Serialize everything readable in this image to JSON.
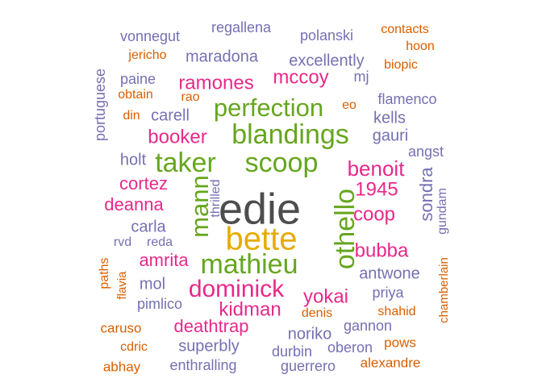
{
  "chart_data": {
    "type": "wordcloud",
    "title": "",
    "palette": {
      "grey": "#4d4d4d",
      "gold": "#e6ab02",
      "green": "#66a61e",
      "magenta": "#e7298a",
      "purple": "#7570b3",
      "orange": "#d95f02"
    },
    "words": [
      {
        "text": "edie",
        "color": "grey"
      },
      {
        "text": "bette",
        "color": "gold"
      },
      {
        "text": "blandings",
        "color": "green"
      },
      {
        "text": "scoop",
        "color": "green"
      },
      {
        "text": "taker",
        "color": "green"
      },
      {
        "text": "mathieu",
        "color": "green"
      },
      {
        "text": "othello",
        "color": "green"
      },
      {
        "text": "perfection",
        "color": "green"
      },
      {
        "text": "mann",
        "color": "green"
      },
      {
        "text": "dominick",
        "color": "magenta"
      },
      {
        "text": "yokai",
        "color": "magenta"
      },
      {
        "text": "kidman",
        "color": "magenta"
      },
      {
        "text": "benoit",
        "color": "magenta"
      },
      {
        "text": "1945",
        "color": "magenta"
      },
      {
        "text": "coop",
        "color": "magenta"
      },
      {
        "text": "bubba",
        "color": "magenta"
      },
      {
        "text": "mccoy",
        "color": "magenta"
      },
      {
        "text": "ramones",
        "color": "magenta"
      },
      {
        "text": "booker",
        "color": "magenta"
      },
      {
        "text": "cortez",
        "color": "magenta"
      },
      {
        "text": "deanna",
        "color": "magenta"
      },
      {
        "text": "amrita",
        "color": "magenta"
      },
      {
        "text": "deathtrap",
        "color": "magenta"
      },
      {
        "text": "sondra",
        "color": "purple"
      },
      {
        "text": "noriko",
        "color": "purple"
      },
      {
        "text": "superbly",
        "color": "purple"
      },
      {
        "text": "antwone",
        "color": "purple"
      },
      {
        "text": "excellently",
        "color": "purple"
      },
      {
        "text": "maradona",
        "color": "purple"
      },
      {
        "text": "carla",
        "color": "purple"
      },
      {
        "text": "carell",
        "color": "purple"
      },
      {
        "text": "kells",
        "color": "purple"
      },
      {
        "text": "gauri",
        "color": "purple"
      },
      {
        "text": "flamenco",
        "color": "purple"
      },
      {
        "text": "portuguese",
        "color": "purple"
      },
      {
        "text": "holt",
        "color": "purple"
      },
      {
        "text": "mol",
        "color": "purple"
      },
      {
        "text": "pimlico",
        "color": "purple"
      },
      {
        "text": "priya",
        "color": "purple"
      },
      {
        "text": "gannon",
        "color": "purple"
      },
      {
        "text": "durbin",
        "color": "purple"
      },
      {
        "text": "oberon",
        "color": "purple"
      },
      {
        "text": "guerrero",
        "color": "purple"
      },
      {
        "text": "enthralling",
        "color": "purple"
      },
      {
        "text": "vonnegut",
        "color": "purple"
      },
      {
        "text": "regallena",
        "color": "purple"
      },
      {
        "text": "polanski",
        "color": "purple"
      },
      {
        "text": "paine",
        "color": "purple"
      },
      {
        "text": "mj",
        "color": "purple"
      },
      {
        "text": "angst",
        "color": "purple"
      },
      {
        "text": "gundam",
        "color": "purple"
      },
      {
        "text": "thrilled",
        "color": "purple"
      },
      {
        "text": "rvd",
        "color": "purple"
      },
      {
        "text": "reda",
        "color": "purple"
      },
      {
        "text": "chamberlain",
        "color": "orange"
      },
      {
        "text": "contacts",
        "color": "orange"
      },
      {
        "text": "hoon",
        "color": "orange"
      },
      {
        "text": "biopic",
        "color": "orange"
      },
      {
        "text": "jericho",
        "color": "orange"
      },
      {
        "text": "obtain",
        "color": "orange"
      },
      {
        "text": "rao",
        "color": "orange"
      },
      {
        "text": "din",
        "color": "orange"
      },
      {
        "text": "eo",
        "color": "orange"
      },
      {
        "text": "paths",
        "color": "orange"
      },
      {
        "text": "flavia",
        "color": "orange"
      },
      {
        "text": "caruso",
        "color": "orange"
      },
      {
        "text": "cdric",
        "color": "orange"
      },
      {
        "text": "abhay",
        "color": "orange"
      },
      {
        "text": "denis",
        "color": "orange"
      },
      {
        "text": "shahid",
        "color": "orange"
      },
      {
        "text": "pows",
        "color": "orange"
      },
      {
        "text": "alexandre",
        "color": "orange"
      }
    ]
  }
}
